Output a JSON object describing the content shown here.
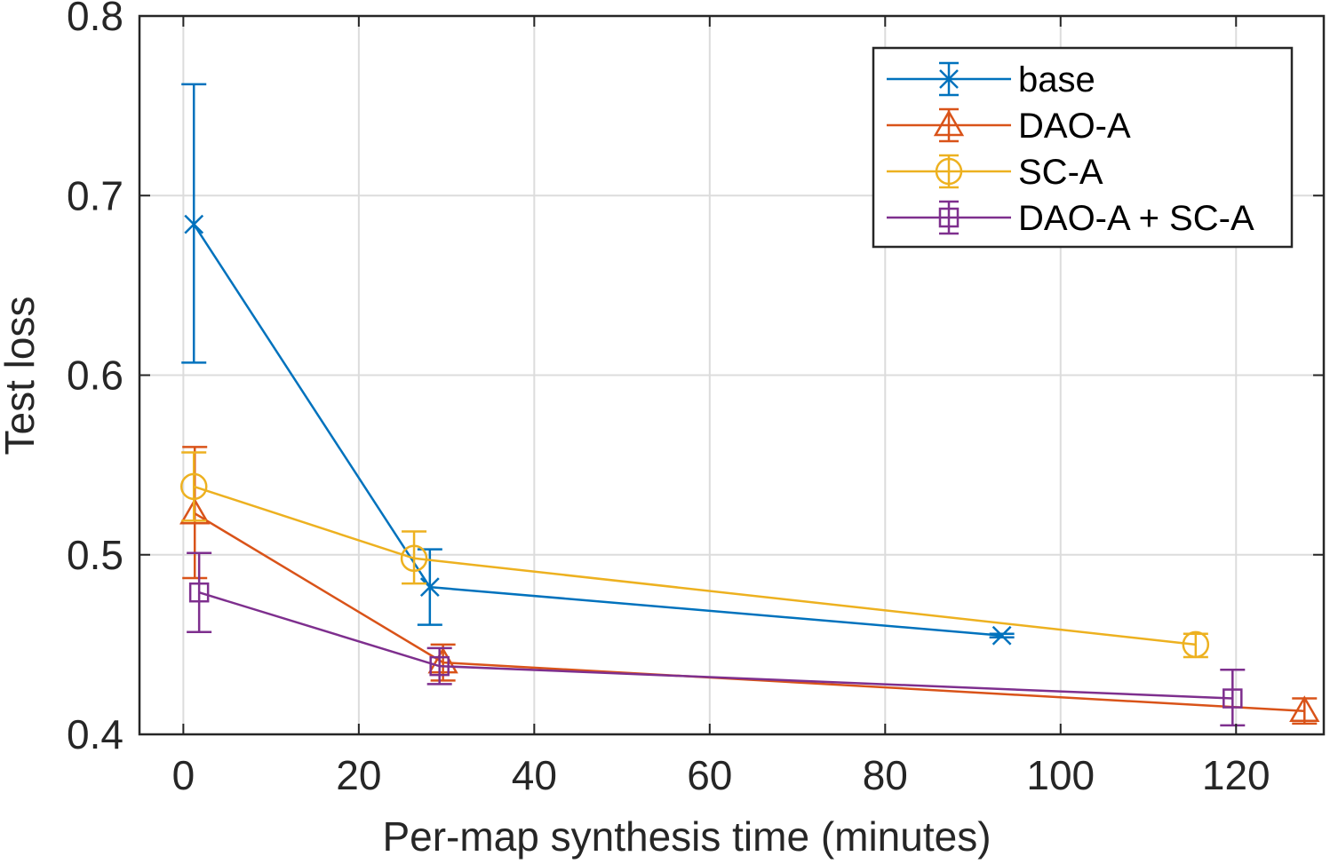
{
  "chart_data": {
    "type": "line",
    "xlabel": "Per-map synthesis time (minutes)",
    "ylabel": "Test loss",
    "xlim": [
      -5,
      130
    ],
    "ylim": [
      0.4,
      0.8
    ],
    "xticks": [
      0,
      20,
      40,
      60,
      80,
      100,
      120
    ],
    "yticks": [
      0.4,
      0.5,
      0.6,
      0.7,
      0.8
    ],
    "xtick_labels": [
      "0",
      "20",
      "40",
      "60",
      "80",
      "100",
      "120"
    ],
    "ytick_labels": [
      "0.4",
      "0.5",
      "0.6",
      "0.7",
      "0.8"
    ],
    "grid": true,
    "legend_position": "top-right",
    "series": [
      {
        "name": "base",
        "color": "#0072BD",
        "marker": "x",
        "points": [
          {
            "x": 1.2,
            "y": 0.684,
            "lo": 0.607,
            "hi": 0.762
          },
          {
            "x": 28.1,
            "y": 0.482,
            "lo": 0.461,
            "hi": 0.503
          },
          {
            "x": 93.3,
            "y": 0.455,
            "lo": 0.454,
            "hi": 0.456
          }
        ]
      },
      {
        "name": "DAO-A",
        "color": "#D95319",
        "marker": "triangle",
        "points": [
          {
            "x": 1.3,
            "y": 0.523,
            "lo": 0.487,
            "hi": 0.56
          },
          {
            "x": 29.6,
            "y": 0.44,
            "lo": 0.43,
            "hi": 0.45
          },
          {
            "x": 127.8,
            "y": 0.413,
            "lo": 0.406,
            "hi": 0.42
          }
        ]
      },
      {
        "name": "SC-A",
        "color": "#EDB120",
        "marker": "circle",
        "points": [
          {
            "x": 1.2,
            "y": 0.538,
            "lo": 0.519,
            "hi": 0.557
          },
          {
            "x": 26.3,
            "y": 0.498,
            "lo": 0.484,
            "hi": 0.513
          },
          {
            "x": 115.4,
            "y": 0.45,
            "lo": 0.443,
            "hi": 0.456
          }
        ]
      },
      {
        "name": "DAO-A + SC-A",
        "color": "#7E2F8E",
        "marker": "square",
        "points": [
          {
            "x": 1.8,
            "y": 0.479,
            "lo": 0.457,
            "hi": 0.501
          },
          {
            "x": 29.2,
            "y": 0.438,
            "lo": 0.428,
            "hi": 0.448
          },
          {
            "x": 119.6,
            "y": 0.42,
            "lo": 0.405,
            "hi": 0.436
          }
        ]
      }
    ]
  }
}
